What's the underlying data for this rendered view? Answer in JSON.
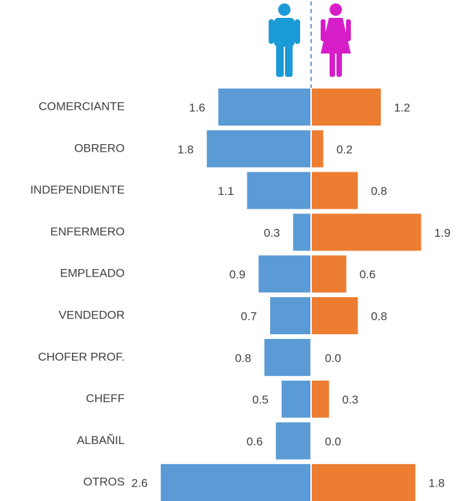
{
  "chart_data": {
    "type": "butterfly",
    "categories": [
      "COMERCIANTE",
      "OBRERO",
      "INDEPENDIENTE",
      "ENFERMERO",
      "EMPLEADO",
      "VENDEDOR",
      "CHOFER PROF.",
      "CHEFF",
      "ALBAÑIL",
      "OTROS"
    ],
    "series": [
      {
        "color": "#5b9bd5",
        "values": [
          1.6,
          1.8,
          1.1,
          0.3,
          0.9,
          0.7,
          0.8,
          0.5,
          0.6,
          2.6
        ],
        "value_labels": [
          "1.6",
          "1.8",
          "1.1",
          "0.3",
          "0.9",
          "0.7",
          "0.8",
          "0.5",
          "0.6",
          "2.6"
        ]
      },
      {
        "color": "#ed7d31",
        "values": [
          1.2,
          0.2,
          0.8,
          1.9,
          0.6,
          0.8,
          0,
          0.3,
          0,
          1.8
        ],
        "value_labels": [
          "1.2",
          "0.2",
          "0.8",
          "1.9",
          "0.6",
          "0.8",
          "0.0",
          "0.3",
          "0.0",
          "1.8"
        ]
      }
    ]
  }
}
